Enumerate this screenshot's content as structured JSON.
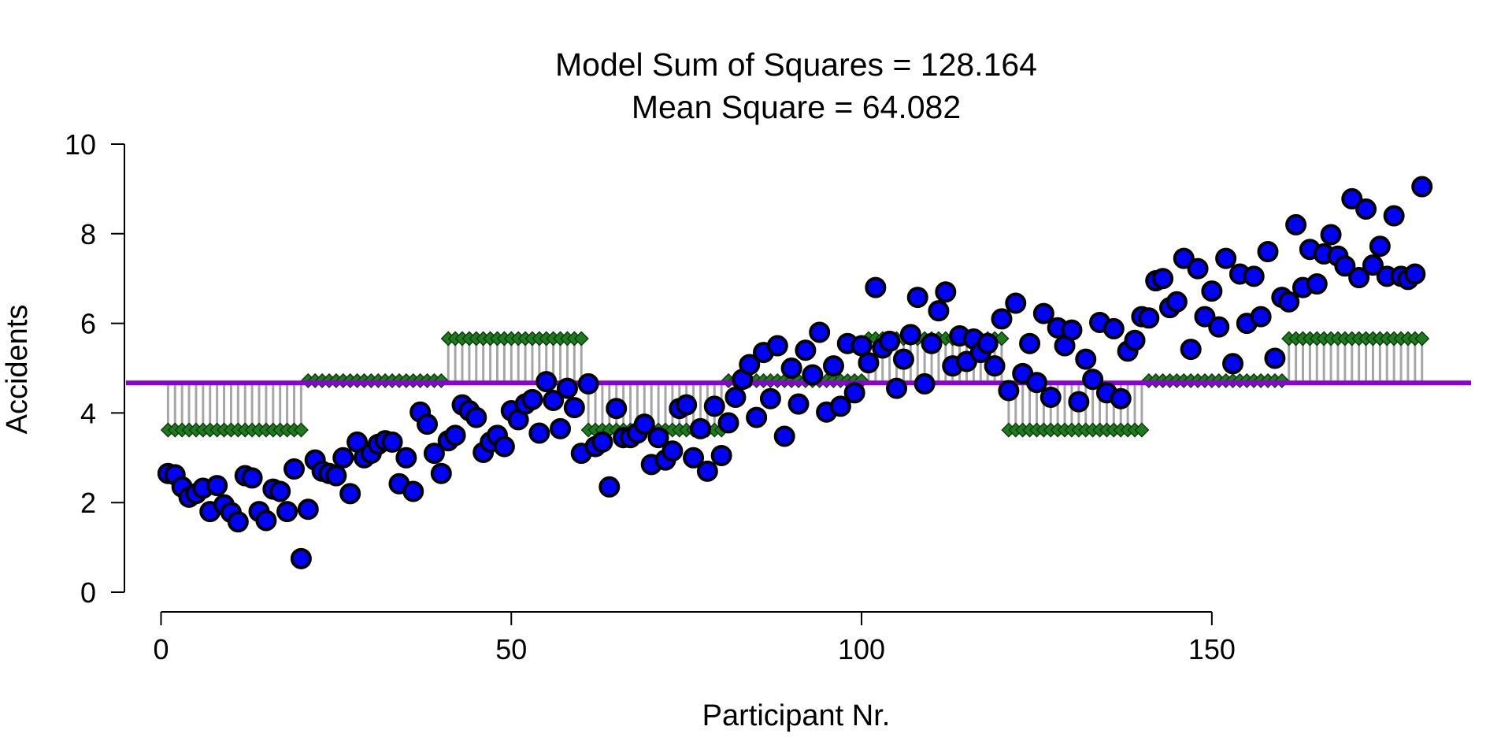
{
  "chart_data": {
    "type": "scatter",
    "title_lines": [
      "Model Sum of Squares = 128.164",
      "Mean Square = 64.082"
    ],
    "xlabel": "Participant Nr.",
    "ylabel": "Accidents",
    "xlim": [
      -5,
      187
    ],
    "ylim": [
      0,
      10
    ],
    "x_ticks": [
      0,
      50,
      100,
      150
    ],
    "y_ticks": [
      0,
      2,
      4,
      6,
      8,
      10
    ],
    "grand_mean": 4.67,
    "groups": [
      {
        "from": 1,
        "to": 20,
        "mean": 3.62
      },
      {
        "from": 21,
        "to": 40,
        "mean": 4.72
      },
      {
        "from": 41,
        "to": 60,
        "mean": 5.66
      },
      {
        "from": 61,
        "to": 80,
        "mean": 3.62
      },
      {
        "from": 81,
        "to": 100,
        "mean": 4.72
      },
      {
        "from": 101,
        "to": 120,
        "mean": 5.66
      },
      {
        "from": 121,
        "to": 140,
        "mean": 3.62
      },
      {
        "from": 141,
        "to": 160,
        "mean": 4.72
      },
      {
        "from": 161,
        "to": 180,
        "mean": 5.66
      }
    ],
    "observations": [
      2.65,
      2.62,
      2.35,
      2.12,
      2.2,
      2.32,
      1.8,
      2.38,
      1.95,
      1.78,
      1.57,
      2.6,
      2.55,
      1.8,
      1.6,
      2.3,
      2.25,
      1.8,
      2.75,
      0.75,
      1.85,
      2.95,
      2.7,
      2.65,
      2.6,
      3.0,
      2.2,
      3.35,
      3.0,
      3.1,
      3.3,
      3.38,
      3.35,
      2.42,
      3.0,
      2.25,
      4.02,
      3.75,
      3.1,
      2.65,
      3.38,
      3.5,
      4.18,
      4.05,
      3.9,
      3.12,
      3.35,
      3.5,
      3.25,
      4.05,
      3.85,
      4.2,
      4.3,
      3.55,
      4.7,
      4.28,
      3.65,
      4.55,
      4.12,
      3.1,
      4.65,
      3.25,
      3.35,
      2.35,
      4.1,
      3.45,
      3.45,
      3.55,
      3.75,
      2.85,
      3.45,
      2.95,
      3.15,
      4.1,
      4.18,
      3.0,
      3.65,
      2.7,
      4.15,
      3.05,
      3.78,
      4.35,
      4.75,
      5.08,
      3.9,
      5.35,
      4.32,
      5.5,
      3.48,
      5.0,
      4.2,
      5.4,
      4.85,
      5.8,
      4.02,
      5.05,
      4.15,
      5.55,
      4.45,
      5.5,
      5.12,
      6.8,
      5.45,
      5.6,
      4.55,
      5.2,
      5.75,
      6.58,
      4.65,
      5.55,
      6.28,
      6.7,
      5.05,
      5.72,
      5.15,
      5.65,
      5.35,
      5.55,
      5.05,
      6.1,
      4.5,
      6.45,
      4.88,
      5.55,
      4.68,
      6.22,
      4.35,
      5.9,
      5.5,
      5.85,
      4.25,
      5.2,
      4.75,
      6.02,
      4.45,
      5.88,
      4.32,
      5.38,
      5.62,
      6.15,
      6.12,
      6.95,
      7.0,
      6.35,
      6.48,
      7.45,
      5.42,
      7.22,
      6.15,
      6.72,
      5.92,
      7.45,
      5.1,
      7.1,
      6.0,
      7.05,
      6.15,
      7.6,
      5.22,
      6.58,
      6.48,
      8.2,
      6.8,
      7.65,
      6.88,
      7.55,
      7.98,
      7.5,
      7.28,
      8.78,
      7.02,
      8.55,
      7.3,
      7.72,
      7.05,
      8.4,
      7.05,
      6.98,
      7.1,
      9.05
    ],
    "colors": {
      "point_fill": "#0000ff",
      "point_stroke": "#000000",
      "group_mean_fill": "#1f7a1f",
      "group_mean_stroke": "#0d3d0d",
      "residual_line": "#a6a6a6",
      "grand_mean_line": "#8b00d8"
    }
  }
}
